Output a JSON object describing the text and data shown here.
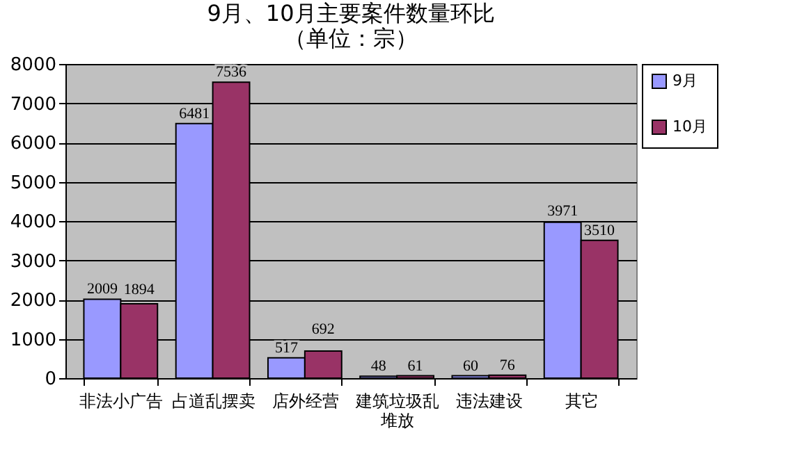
{
  "chart_data": {
    "type": "bar",
    "title": "9月、10月主要案件数量环比",
    "subtitle": "（单位：宗）",
    "categories": [
      "非法小广告",
      "占道乱摆卖",
      "店外经营",
      "建筑垃圾乱堆放",
      "违法建设",
      "其它"
    ],
    "series": [
      {
        "name": "9月",
        "color": "#9999ff",
        "values": [
          2009,
          6481,
          517,
          48,
          60,
          3971
        ]
      },
      {
        "name": "10月",
        "color": "#993366",
        "values": [
          1894,
          7536,
          692,
          61,
          76,
          3510
        ]
      }
    ],
    "ylim": [
      0,
      8000
    ],
    "yticks": [
      0,
      1000,
      2000,
      3000,
      4000,
      5000,
      6000,
      7000,
      8000
    ],
    "grid": "y",
    "legend": "right",
    "data_labels": true
  }
}
